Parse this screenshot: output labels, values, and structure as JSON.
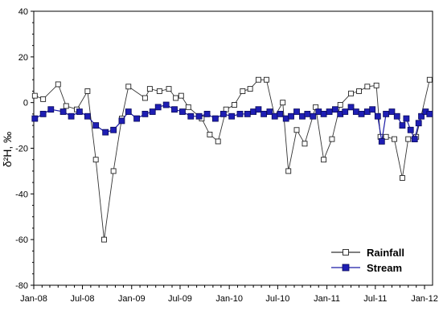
{
  "chart_data": {
    "type": "line",
    "ylabel": "δ²H, ‰",
    "xlabel": "",
    "ylim": [
      -80,
      40
    ],
    "yticks": [
      40,
      20,
      0,
      -20,
      -40,
      -60,
      -80
    ],
    "xlim": [
      "2008-01-01",
      "2012-01-31"
    ],
    "xticks": [
      {
        "date": "2008-01-01",
        "label": "Jan-08"
      },
      {
        "date": "2008-07-01",
        "label": "Jul-08"
      },
      {
        "date": "2009-01-01",
        "label": "Jan-09"
      },
      {
        "date": "2009-07-01",
        "label": "Jul-09"
      },
      {
        "date": "2010-01-01",
        "label": "Jan-10"
      },
      {
        "date": "2010-07-01",
        "label": "Jul-10"
      },
      {
        "date": "2011-01-01",
        "label": "Jan-11"
      },
      {
        "date": "2011-07-01",
        "label": "Jul-11"
      },
      {
        "date": "2012-01-01",
        "label": "Jan-12"
      }
    ],
    "grid": false,
    "legend_position": "bottom-right",
    "series": [
      {
        "name": "Rainfall",
        "marker": "open-square",
        "color": "#333333",
        "points": [
          [
            "2008-01-05",
            3
          ],
          [
            "2008-02-05",
            1.5
          ],
          [
            "2008-04-01",
            8
          ],
          [
            "2008-05-01",
            -1.5
          ],
          [
            "2008-06-10",
            -3
          ],
          [
            "2008-07-20",
            5
          ],
          [
            "2008-08-20",
            -25
          ],
          [
            "2008-09-20",
            -60
          ],
          [
            "2008-10-25",
            -30
          ],
          [
            "2008-11-25",
            -7
          ],
          [
            "2008-12-20",
            7
          ],
          [
            "2009-02-20",
            2
          ],
          [
            "2009-03-10",
            6
          ],
          [
            "2009-04-15",
            5
          ],
          [
            "2009-05-20",
            6
          ],
          [
            "2009-06-15",
            2
          ],
          [
            "2009-07-05",
            3
          ],
          [
            "2009-08-01",
            -2
          ],
          [
            "2009-09-20",
            -7
          ],
          [
            "2009-10-20",
            -14
          ],
          [
            "2009-11-20",
            -17
          ],
          [
            "2009-12-20",
            -3
          ],
          [
            "2010-01-20",
            -1
          ],
          [
            "2010-02-20",
            5
          ],
          [
            "2010-03-20",
            6
          ],
          [
            "2010-04-20",
            10
          ],
          [
            "2010-05-20",
            10
          ],
          [
            "2010-06-20",
            -6
          ],
          [
            "2010-07-20",
            0
          ],
          [
            "2010-08-10",
            -30
          ],
          [
            "2010-09-10",
            -12
          ],
          [
            "2010-10-10",
            -18
          ],
          [
            "2010-11-20",
            -2
          ],
          [
            "2010-12-20",
            -25
          ],
          [
            "2011-01-20",
            -16
          ],
          [
            "2011-02-20",
            -1
          ],
          [
            "2011-04-01",
            4
          ],
          [
            "2011-05-01",
            5
          ],
          [
            "2011-06-01",
            7
          ],
          [
            "2011-07-05",
            7.5
          ],
          [
            "2011-07-20",
            -15
          ],
          [
            "2011-08-10",
            -15
          ],
          [
            "2011-09-10",
            -16
          ],
          [
            "2011-10-10",
            -33
          ],
          [
            "2011-11-01",
            -16
          ],
          [
            "2011-12-01",
            -15
          ],
          [
            "2012-01-20",
            10
          ]
        ]
      },
      {
        "name": "Stream",
        "marker": "filled-square",
        "color": "#1a1aa6",
        "points": [
          [
            "2008-01-05",
            -7
          ],
          [
            "2008-02-05",
            -5
          ],
          [
            "2008-03-05",
            -3
          ],
          [
            "2008-04-20",
            -4
          ],
          [
            "2008-05-20",
            -6
          ],
          [
            "2008-06-20",
            -4
          ],
          [
            "2008-07-20",
            -6
          ],
          [
            "2008-08-20",
            -10
          ],
          [
            "2008-09-25",
            -13
          ],
          [
            "2008-10-25",
            -12
          ],
          [
            "2008-11-25",
            -8
          ],
          [
            "2008-12-20",
            -4
          ],
          [
            "2009-01-20",
            -7
          ],
          [
            "2009-02-20",
            -5
          ],
          [
            "2009-03-20",
            -4
          ],
          [
            "2009-04-10",
            -2
          ],
          [
            "2009-05-10",
            -1
          ],
          [
            "2009-06-10",
            -3
          ],
          [
            "2009-07-10",
            -4
          ],
          [
            "2009-08-10",
            -6
          ],
          [
            "2009-09-10",
            -6
          ],
          [
            "2009-10-10",
            -5
          ],
          [
            "2009-11-10",
            -7
          ],
          [
            "2009-12-10",
            -5
          ],
          [
            "2010-01-10",
            -6
          ],
          [
            "2010-02-10",
            -5
          ],
          [
            "2010-03-10",
            -5
          ],
          [
            "2010-04-01",
            -4
          ],
          [
            "2010-04-20",
            -3
          ],
          [
            "2010-05-10",
            -5
          ],
          [
            "2010-06-01",
            -4
          ],
          [
            "2010-06-20",
            -6
          ],
          [
            "2010-07-10",
            -5
          ],
          [
            "2010-08-01",
            -7
          ],
          [
            "2010-08-20",
            -6
          ],
          [
            "2010-09-10",
            -4
          ],
          [
            "2010-10-01",
            -6
          ],
          [
            "2010-10-20",
            -5
          ],
          [
            "2010-11-10",
            -6
          ],
          [
            "2010-12-01",
            -4
          ],
          [
            "2010-12-20",
            -5
          ],
          [
            "2011-01-10",
            -4
          ],
          [
            "2011-02-01",
            -3
          ],
          [
            "2011-02-20",
            -5
          ],
          [
            "2011-03-10",
            -4
          ],
          [
            "2011-04-01",
            -2
          ],
          [
            "2011-04-20",
            -4
          ],
          [
            "2011-05-10",
            -5
          ],
          [
            "2011-06-01",
            -4
          ],
          [
            "2011-06-20",
            -3
          ],
          [
            "2011-07-10",
            -6
          ],
          [
            "2011-07-25",
            -17
          ],
          [
            "2011-08-10",
            -5
          ],
          [
            "2011-09-01",
            -4
          ],
          [
            "2011-09-20",
            -6
          ],
          [
            "2011-10-10",
            -10
          ],
          [
            "2011-10-25",
            -7
          ],
          [
            "2011-11-10",
            -12
          ],
          [
            "2011-11-25",
            -16
          ],
          [
            "2011-12-10",
            -9
          ],
          [
            "2011-12-20",
            -6
          ],
          [
            "2012-01-05",
            -4
          ],
          [
            "2012-01-20",
            -5
          ]
        ]
      }
    ]
  }
}
